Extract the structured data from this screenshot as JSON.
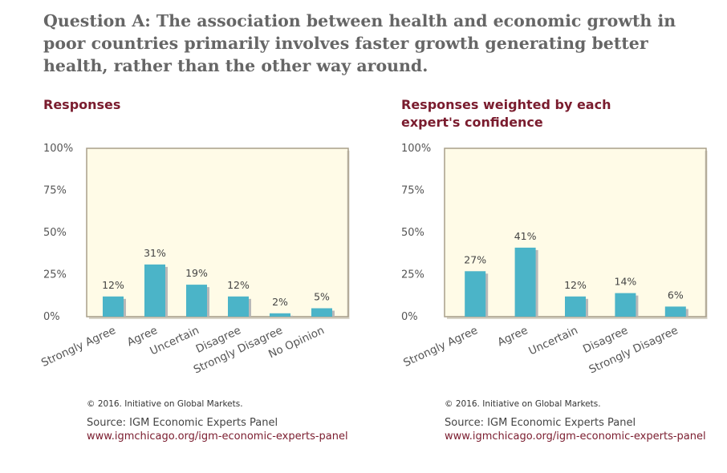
{
  "question": "Question A: The association between health and economic growth in poor countries primarily involves faster growth generating better health, rather than the other way around.",
  "colors": {
    "bar": "#4bb4c8",
    "bar_shadow": "#b8b8b8",
    "plot_bg": "#fffbe7",
    "frame": "#a89f8a",
    "title": "#7a1c2e",
    "link": "#7a1c2e"
  },
  "panels": [
    {
      "title": "Responses",
      "copyright": "© 2016. Initiative on Global Markets.",
      "source": "Source: IGM Economic Experts Panel",
      "source_link": "www.igmchicago.org/igm-economic-experts-panel"
    },
    {
      "title": "Responses weighted by each expert's confidence",
      "copyright": "© 2016. Initiative on Global Markets.",
      "source": "Source: IGM Economic Experts Panel",
      "source_link": "www.igmchicago.org/igm-economic-experts-panel"
    }
  ],
  "chart_data": [
    {
      "type": "bar",
      "title": "Responses",
      "categories": [
        "Strongly Agree",
        "Agree",
        "Uncertain",
        "Disagree",
        "Strongly Disagree",
        "No Opinion"
      ],
      "values": [
        12,
        31,
        19,
        12,
        2,
        5
      ],
      "data_labels": [
        "12%",
        "31%",
        "19%",
        "12%",
        "2%",
        "5%"
      ],
      "yticks": [
        "0%",
        "25%",
        "50%",
        "75%",
        "100%"
      ],
      "ylim": [
        0,
        100
      ],
      "grid": false
    },
    {
      "type": "bar",
      "title": "Responses weighted by each expert's confidence",
      "categories": [
        "Strongly Agree",
        "Agree",
        "Uncertain",
        "Disagree",
        "Strongly Disagree"
      ],
      "values": [
        27,
        41,
        12,
        14,
        6
      ],
      "data_labels": [
        "27%",
        "41%",
        "12%",
        "14%",
        "6%"
      ],
      "yticks": [
        "0%",
        "25%",
        "50%",
        "75%",
        "100%"
      ],
      "ylim": [
        0,
        100
      ],
      "grid": false
    }
  ]
}
